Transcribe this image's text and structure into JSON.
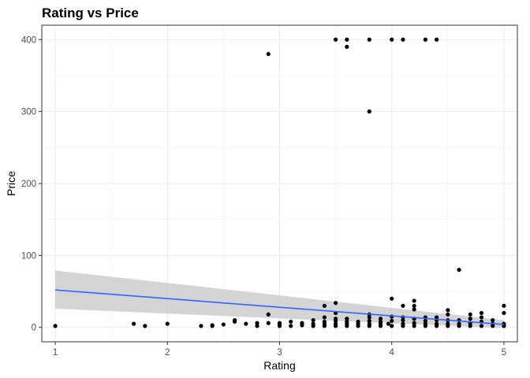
{
  "chart_data": {
    "type": "scatter",
    "title": "Rating vs Price",
    "xlabel": "Rating",
    "ylabel": "Price",
    "xlim": [
      0.88,
      5.12
    ],
    "ylim": [
      -20,
      420
    ],
    "x_ticks": [
      "1",
      "2",
      "3",
      "4",
      "5"
    ],
    "y_ticks": [
      "0",
      "100",
      "200",
      "300",
      "400"
    ],
    "grid": true,
    "colors": {
      "points": "#000000",
      "line": "#3366FF",
      "ribbon": "#cccccc"
    },
    "points": [
      [
        1.0,
        2
      ],
      [
        1.7,
        5
      ],
      [
        1.8,
        2
      ],
      [
        2.0,
        5
      ],
      [
        2.3,
        2
      ],
      [
        2.4,
        3
      ],
      [
        2.4,
        2
      ],
      [
        2.5,
        4
      ],
      [
        2.6,
        8
      ],
      [
        2.6,
        10
      ],
      [
        2.7,
        5
      ],
      [
        2.8,
        2
      ],
      [
        2.8,
        6
      ],
      [
        2.9,
        6
      ],
      [
        2.9,
        18
      ],
      [
        2.9,
        380
      ],
      [
        3.0,
        2
      ],
      [
        3.0,
        4
      ],
      [
        3.0,
        6
      ],
      [
        3.1,
        2
      ],
      [
        3.1,
        8
      ],
      [
        3.2,
        3
      ],
      [
        3.2,
        6
      ],
      [
        3.3,
        2
      ],
      [
        3.3,
        5
      ],
      [
        3.3,
        10
      ],
      [
        3.4,
        2
      ],
      [
        3.4,
        5
      ],
      [
        3.4,
        8
      ],
      [
        3.4,
        14
      ],
      [
        3.4,
        30
      ],
      [
        3.5,
        2
      ],
      [
        3.5,
        5
      ],
      [
        3.5,
        9
      ],
      [
        3.5,
        12
      ],
      [
        3.5,
        20
      ],
      [
        3.5,
        34
      ],
      [
        3.5,
        400
      ],
      [
        3.6,
        2
      ],
      [
        3.6,
        5
      ],
      [
        3.6,
        8
      ],
      [
        3.6,
        12
      ],
      [
        3.6,
        400
      ],
      [
        3.6,
        390
      ],
      [
        3.7,
        2
      ],
      [
        3.7,
        5
      ],
      [
        3.7,
        8
      ],
      [
        3.8,
        2
      ],
      [
        3.8,
        5
      ],
      [
        3.8,
        9
      ],
      [
        3.8,
        14
      ],
      [
        3.8,
        18
      ],
      [
        3.8,
        400
      ],
      [
        3.8,
        300
      ],
      [
        3.9,
        2
      ],
      [
        3.9,
        5
      ],
      [
        3.9,
        8
      ],
      [
        3.9,
        12
      ],
      [
        4.0,
        2
      ],
      [
        3.97,
        5
      ],
      [
        4.0,
        9
      ],
      [
        4.0,
        15
      ],
      [
        4.0,
        40
      ],
      [
        4.0,
        400
      ],
      [
        4.1,
        2
      ],
      [
        4.1,
        5
      ],
      [
        4.1,
        10
      ],
      [
        4.1,
        14
      ],
      [
        4.1,
        30
      ],
      [
        4.1,
        400
      ],
      [
        4.2,
        2
      ],
      [
        4.2,
        6
      ],
      [
        4.2,
        12
      ],
      [
        4.2,
        25
      ],
      [
        4.2,
        30
      ],
      [
        4.2,
        37
      ],
      [
        4.3,
        2
      ],
      [
        4.3,
        5
      ],
      [
        4.3,
        9
      ],
      [
        4.3,
        14
      ],
      [
        4.3,
        400
      ],
      [
        4.4,
        2
      ],
      [
        4.4,
        5
      ],
      [
        4.4,
        10
      ],
      [
        4.4,
        14
      ],
      [
        4.4,
        400
      ],
      [
        4.5,
        2
      ],
      [
        4.5,
        5
      ],
      [
        4.5,
        10
      ],
      [
        4.5,
        18
      ],
      [
        4.5,
        24
      ],
      [
        4.6,
        2
      ],
      [
        4.6,
        5
      ],
      [
        4.6,
        10
      ],
      [
        4.6,
        80
      ],
      [
        4.7,
        2
      ],
      [
        4.7,
        6
      ],
      [
        4.7,
        12
      ],
      [
        4.7,
        18
      ],
      [
        4.8,
        2
      ],
      [
        4.8,
        8
      ],
      [
        4.8,
        14
      ],
      [
        4.8,
        20
      ],
      [
        4.9,
        2
      ],
      [
        4.9,
        5
      ],
      [
        4.9,
        10
      ],
      [
        5.0,
        2
      ],
      [
        5.0,
        5
      ],
      [
        5.0,
        20
      ],
      [
        5.0,
        30
      ]
    ],
    "smooth": {
      "method": "linear",
      "x": [
        1,
        5
      ],
      "fit": [
        52,
        4
      ],
      "lower": [
        26,
        -1
      ],
      "upper": [
        79,
        10
      ]
    }
  }
}
